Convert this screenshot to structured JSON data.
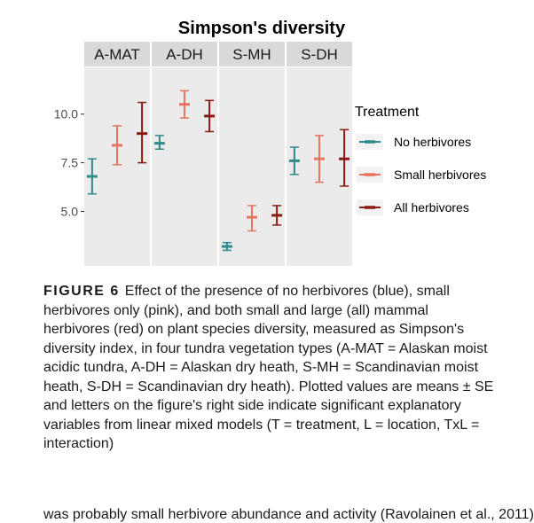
{
  "chart_data": {
    "type": "errorbar",
    "title": "Simpson's diversity",
    "facets": [
      "A-MAT",
      "A-DH",
      "S-MH",
      "S-DH"
    ],
    "ylim": [
      2.2,
      12.4
    ],
    "yticks": [
      5.0,
      7.5,
      10.0
    ],
    "ytick_labels": [
      "5.0",
      "7.5",
      "10.0"
    ],
    "grid": false,
    "legend": {
      "title": "Treatment",
      "position": "right",
      "entries": [
        {
          "name": "No herbivores",
          "color": "#2e8b8b"
        },
        {
          "name": "Small herbivores",
          "color": "#e8735f"
        },
        {
          "name": "All herbivores",
          "color": "#8b1a10"
        }
      ]
    },
    "series": [
      {
        "name": "No herbivores",
        "color": "#2e8b8b",
        "points": [
          {
            "facet": "A-MAT",
            "mean": 6.8,
            "lower": 5.9,
            "upper": 7.7
          },
          {
            "facet": "A-DH",
            "mean": 8.5,
            "lower": 8.2,
            "upper": 8.9
          },
          {
            "facet": "S-MH",
            "mean": 3.2,
            "lower": 3.0,
            "upper": 3.4
          },
          {
            "facet": "S-DH",
            "mean": 7.6,
            "lower": 6.9,
            "upper": 8.3
          }
        ]
      },
      {
        "name": "Small herbivores",
        "color": "#e8735f",
        "points": [
          {
            "facet": "A-MAT",
            "mean": 8.4,
            "lower": 7.4,
            "upper": 9.4
          },
          {
            "facet": "A-DH",
            "mean": 10.5,
            "lower": 9.8,
            "upper": 11.2
          },
          {
            "facet": "S-MH",
            "mean": 4.7,
            "lower": 4.0,
            "upper": 5.3
          },
          {
            "facet": "S-DH",
            "mean": 7.7,
            "lower": 6.5,
            "upper": 8.9
          }
        ]
      },
      {
        "name": "All herbivores",
        "color": "#8b1a10",
        "points": [
          {
            "facet": "A-MAT",
            "mean": 9.0,
            "lower": 7.5,
            "upper": 10.6
          },
          {
            "facet": "A-DH",
            "mean": 9.9,
            "lower": 9.1,
            "upper": 10.7
          },
          {
            "facet": "S-MH",
            "mean": 4.8,
            "lower": 4.3,
            "upper": 5.3
          },
          {
            "facet": "S-DH",
            "mean": 7.7,
            "lower": 6.3,
            "upper": 9.2
          }
        ]
      }
    ]
  },
  "caption": {
    "label": "FIGURE 6",
    "text": "Effect of the presence of no herbivores (blue), small herbivores only (pink), and both small and large (all) mammal herbivores (red) on plant species diversity, measured as Simpson's diversity index, in four tundra vegetation types (A-MAT = Alaskan moist acidic tundra, A-DH = Alaskan dry heath, S-MH = Scandinavian moist heath, S-DH = Scandinavian dry heath). Plotted values are means ± SE and letters on the figure's right side indicate significant explanatory variables from linear mixed models (T = treatment, L = location, TxL = interaction)"
  },
  "bottom_text": "was probably small herbivore abundance and activity (Ravolainen et al., 2011)"
}
